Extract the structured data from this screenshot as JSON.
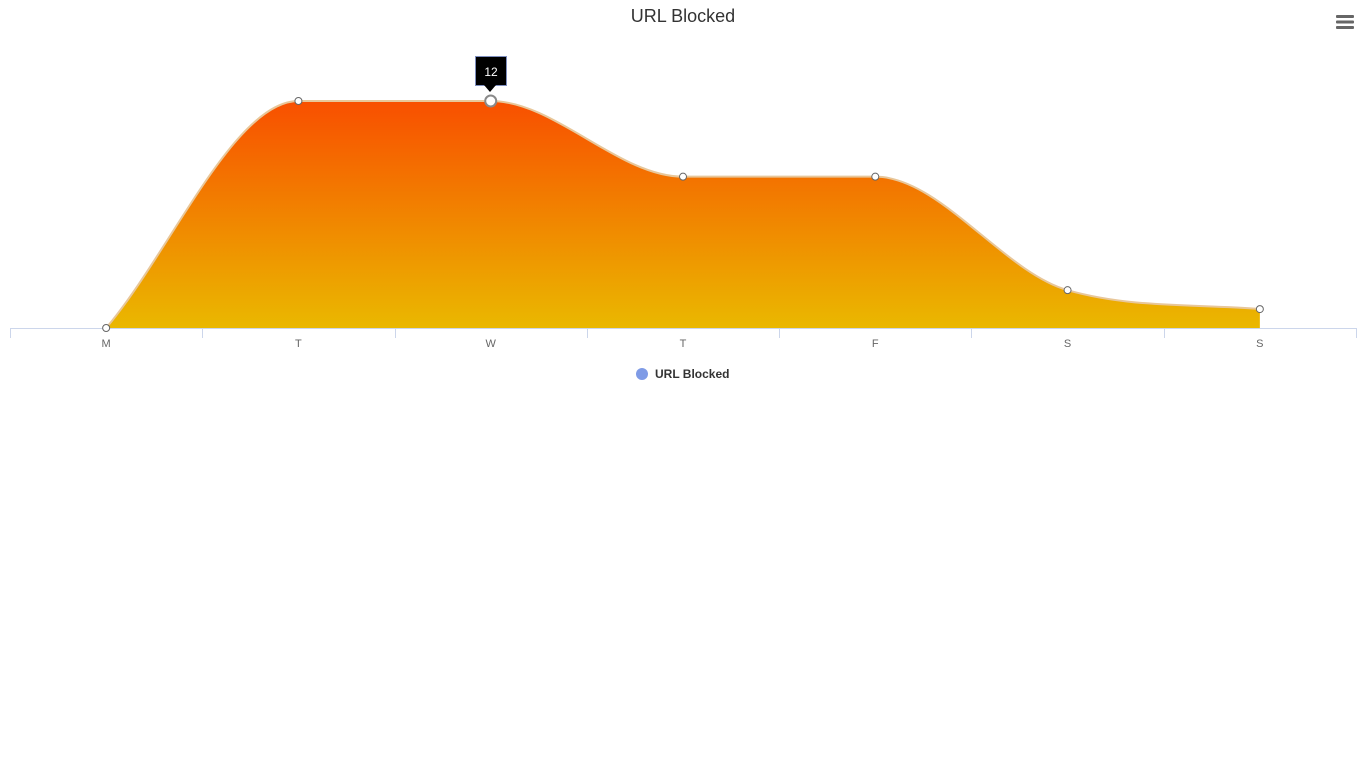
{
  "chart_data": {
    "type": "area",
    "title": "URL Blocked",
    "categories": [
      "M",
      "T",
      "W",
      "T",
      "F",
      "S",
      "S"
    ],
    "series": [
      {
        "name": "URL Blocked",
        "values": [
          0,
          12,
          12,
          8,
          8,
          2,
          1
        ]
      }
    ],
    "ylim": [
      0,
      12
    ],
    "grid": false,
    "legend_placement": "bottom-center",
    "gradient_top_color": "#f84f00",
    "gradient_bottom_color": "#eab800",
    "line_color": "#e8c79a",
    "legend_color": "#7f9be6"
  },
  "tooltip": {
    "text": "12",
    "category_index": 2
  },
  "menu": {
    "icon": "hamburger-menu-icon"
  }
}
